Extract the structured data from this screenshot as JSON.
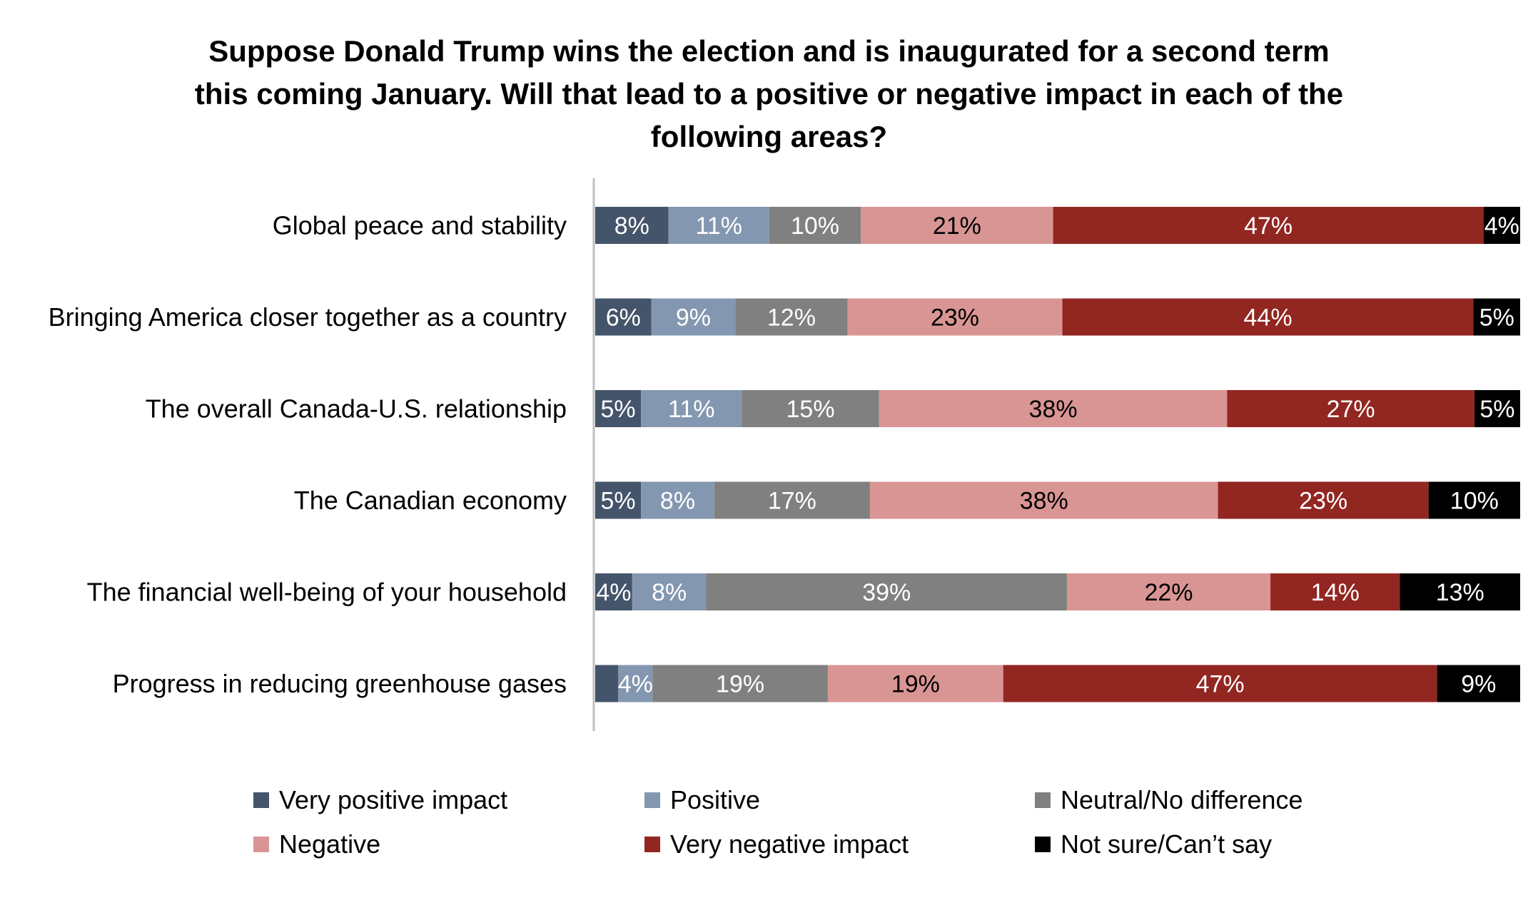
{
  "chart_data": {
    "type": "bar",
    "orientation": "horizontal",
    "stacked": true,
    "title_lines": [
      "Suppose Donald Trump wins the election and is inaugurated for a second term",
      "this coming January. Will that lead to a positive or negative impact in each of the",
      "following areas?"
    ],
    "categories": [
      "Global peace and stability",
      "Bringing America closer together as a country",
      "The overall Canada-U.S. relationship",
      "The Canadian economy",
      "The financial well-being of your household",
      "Progress in reducing greenhouse gases"
    ],
    "series": [
      {
        "name": "Very positive impact",
        "color": "#44546a",
        "label_color": "#ffffff",
        "values": [
          8,
          6,
          5,
          5,
          4,
          2.5
        ],
        "labels": [
          "8%",
          "6%",
          "5%",
          "5%",
          "4%",
          ""
        ]
      },
      {
        "name": "Positive",
        "color": "#8497b0",
        "label_color": "#ffffff",
        "values": [
          11,
          9,
          11,
          8,
          8,
          3.7
        ],
        "labels": [
          "11%",
          "9%",
          "11%",
          "8%",
          "8%",
          "4%"
        ]
      },
      {
        "name": "Neutral/No difference",
        "color": "#808080",
        "label_color": "#ffffff",
        "values": [
          10,
          12,
          15,
          17,
          39,
          19
        ],
        "labels": [
          "10%",
          "12%",
          "15%",
          "17%",
          "39%",
          "19%"
        ]
      },
      {
        "name": "Negative",
        "color": "#d99594",
        "label_color": "#000000",
        "values": [
          21,
          23,
          38,
          38,
          22,
          19
        ],
        "labels": [
          "21%",
          "23%",
          "38%",
          "38%",
          "22%",
          "19%"
        ]
      },
      {
        "name": "Very negative impact",
        "color": "#922621",
        "label_color": "#ffffff",
        "values": [
          47,
          44,
          27,
          23,
          14,
          47
        ],
        "labels": [
          "47%",
          "44%",
          "27%",
          "23%",
          "14%",
          "47%"
        ]
      },
      {
        "name": "Not sure/Can’t say",
        "color": "#000000",
        "label_color": "#ffffff",
        "values": [
          4,
          5,
          5,
          10,
          13,
          9
        ],
        "labels": [
          "4%",
          "5%",
          "5%",
          "10%",
          "13%",
          "9%"
        ]
      }
    ],
    "xlim": [
      0,
      100
    ],
    "grid": false,
    "legend_position": "bottom"
  }
}
